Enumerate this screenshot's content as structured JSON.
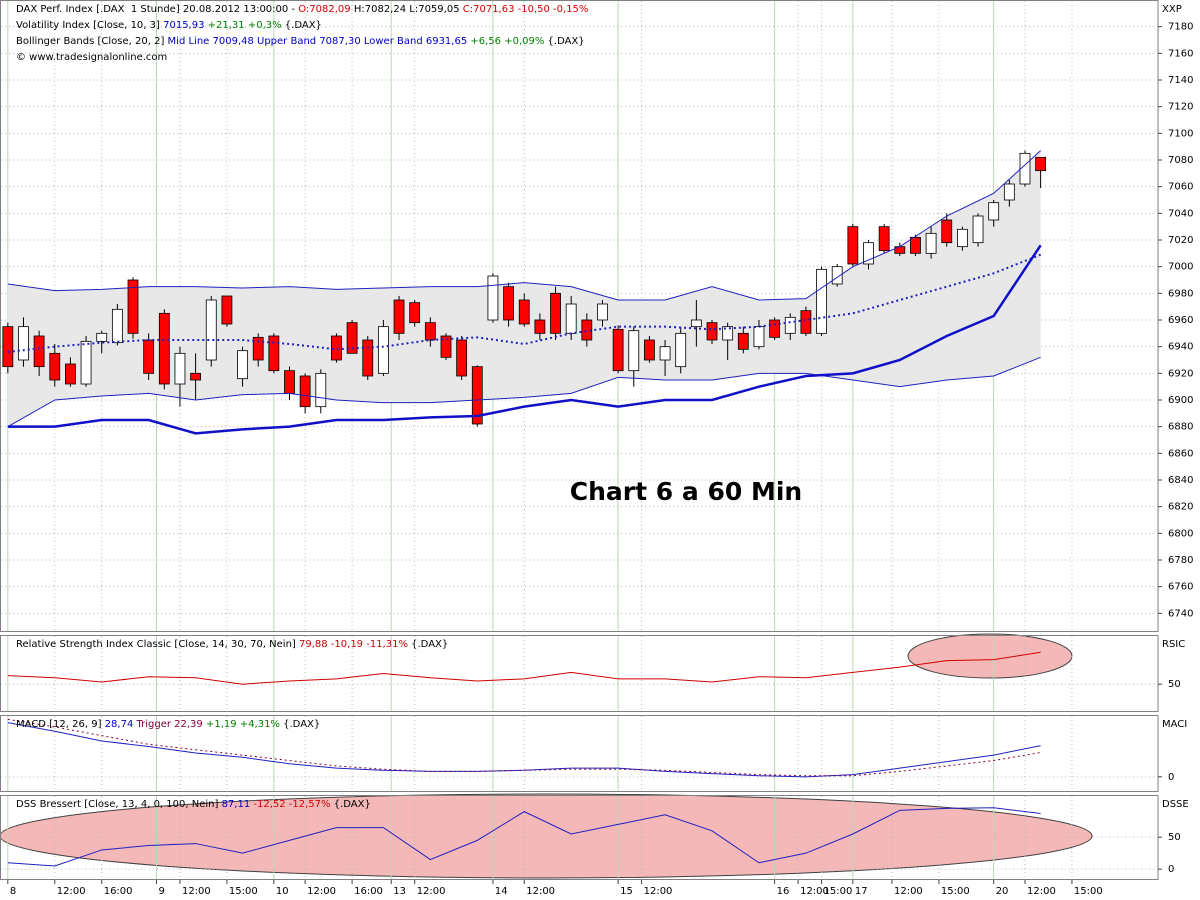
{
  "chart_data": [
    {
      "type": "candlestick",
      "header_lines": [
        [
          {
            "text": "DAX Perf. Index [.DAX  1 Stunde] 20.08.2012 13:00:00 - ",
            "color": "#000000"
          },
          {
            "text": "O:7082,09 ",
            "color": "#d00000"
          },
          {
            "text": "H:7082,24 L:7059,05 ",
            "color": "#000000"
          },
          {
            "text": "C:7071,63 -10,50 -0,15%",
            "color": "#d00000"
          }
        ],
        [
          {
            "text": "Volatility Index [Close, 10, 3] ",
            "color": "#000000"
          },
          {
            "text": "7015,93 ",
            "color": "#0000c0"
          },
          {
            "text": "+21,31 +0,3% ",
            "color": "#008000"
          },
          {
            "text": "{.DAX}",
            "color": "#000000"
          }
        ],
        [
          {
            "text": "Bollinger Bands [Close, 20, 2] ",
            "color": "#000000"
          },
          {
            "text": "Mid Line 7009,48 Upper Band 7087,30 Lower Band 6931,65 ",
            "color": "#0000c0"
          },
          {
            "text": "+6,56 +0,09% ",
            "color": "#008000"
          },
          {
            "text": "{.DAX}",
            "color": "#000000"
          }
        ],
        [
          {
            "text": "© www.tradesignalonline.com",
            "color": "#000000"
          }
        ]
      ],
      "axis_label": "XXP",
      "annotation": "Chart 6 a 60 Min",
      "ylim": [
        6726,
        7200
      ],
      "yticks": [
        6740,
        6760,
        6780,
        6800,
        6820,
        6840,
        6860,
        6880,
        6900,
        6920,
        6940,
        6960,
        6980,
        7000,
        7020,
        7040,
        7060,
        7080,
        7100,
        7120,
        7140,
        7160,
        7180
      ],
      "grid": true,
      "up_color": "#ffffff",
      "down_color": "#ff0000",
      "open": [
        6955,
        6930,
        6948,
        6935,
        6927,
        6912,
        6944,
        6943,
        6990,
        6945,
        6965,
        6912,
        6920,
        6930,
        6978,
        6916,
        6947,
        6948,
        6922,
        6918,
        6895,
        6948,
        6958,
        6945,
        6920,
        6975,
        6973,
        6958,
        6948,
        6945,
        6925,
        6960,
        6985,
        6975,
        6960,
        6980,
        6950,
        6960,
        6960,
        6953,
        6922,
        6945,
        6930,
        6925,
        6955,
        6958,
        6945,
        6950,
        6940,
        6960,
        6950,
        6967,
        6950,
        6987,
        7030,
        7002,
        7030,
        7015,
        7022,
        7010,
        7035,
        7015,
        7018,
        7035,
        7050,
        7062,
        7082
      ],
      "high": [
        6958,
        6962,
        6952,
        6942,
        6932,
        6948,
        6952,
        6972,
        6992,
        6950,
        6968,
        6940,
        6935,
        6978,
        6978,
        6940,
        6950,
        6950,
        6925,
        6920,
        6923,
        6950,
        6960,
        6948,
        6960,
        6978,
        6975,
        6962,
        6950,
        6948,
        6926,
        6995,
        6988,
        6980,
        6965,
        6985,
        6978,
        6965,
        6975,
        6956,
        6955,
        6948,
        6945,
        6955,
        6975,
        6960,
        6958,
        6955,
        6960,
        6962,
        6965,
        6970,
        7000,
        7002,
        7032,
        7020,
        7032,
        7018,
        7024,
        7030,
        7040,
        7030,
        7040,
        7050,
        7065,
        7087,
        7082
      ],
      "low": [
        6920,
        6925,
        6918,
        6910,
        6910,
        6910,
        6935,
        6941,
        6946,
        6915,
        6908,
        6895,
        6900,
        6925,
        6955,
        6910,
        6925,
        6920,
        6900,
        6890,
        6890,
        6928,
        6935,
        6915,
        6918,
        6945,
        6955,
        6940,
        6930,
        6915,
        6880,
        6958,
        6955,
        6955,
        6945,
        6945,
        6945,
        6940,
        6955,
        6920,
        6910,
        6928,
        6918,
        6920,
        6940,
        6942,
        6930,
        6935,
        6938,
        6945,
        6945,
        6948,
        6948,
        6985,
        7000,
        6998,
        7010,
        7008,
        7008,
        7006,
        7015,
        7012,
        7015,
        7030,
        7045,
        7060,
        7059
      ],
      "close": [
        6925,
        6955,
        6925,
        6915,
        6912,
        6944,
        6950,
        6968,
        6950,
        6920,
        6912,
        6935,
        6915,
        6975,
        6957,
        6937,
        6930,
        6922,
        6905,
        6895,
        6920,
        6930,
        6935,
        6918,
        6955,
        6950,
        6958,
        6945,
        6932,
        6918,
        6882,
        6993,
        6960,
        6957,
        6950,
        6950,
        6972,
        6945,
        6972,
        6922,
        6952,
        6930,
        6940,
        6950,
        6960,
        6945,
        6955,
        6938,
        6955,
        6947,
        6962,
        6950,
        6998,
        7000,
        7002,
        7018,
        7012,
        7010,
        7010,
        7025,
        7018,
        7028,
        7038,
        7048,
        7062,
        7085,
        7072
      ],
      "band_color": "#e8e8e8",
      "series": [
        {
          "color": "#2020c0",
          "width": 1,
          "dash": false,
          "x": [
            0,
            3,
            6,
            9,
            12,
            15,
            18,
            21,
            24,
            27,
            30,
            33,
            36,
            39,
            42,
            45,
            48,
            51,
            54,
            57,
            60,
            63,
            66
          ],
          "values": [
            6987,
            6982,
            6983,
            6985,
            6985,
            6984,
            6985,
            6983,
            6984,
            6985,
            6985,
            6988,
            6985,
            6975,
            6975,
            6985,
            6975,
            6976,
            7000,
            7015,
            7038,
            7055,
            7087
          ]
        },
        {
          "color": "#2020c0",
          "width": 2,
          "dash": true,
          "x": [
            0,
            3,
            6,
            9,
            12,
            15,
            18,
            21,
            24,
            27,
            30,
            33,
            36,
            39,
            42,
            45,
            48,
            51,
            54,
            57,
            60,
            63,
            66
          ],
          "values": [
            6936,
            6940,
            6943,
            6945,
            6945,
            6945,
            6942,
            6938,
            6940,
            6945,
            6947,
            6942,
            6950,
            6955,
            6955,
            6953,
            6955,
            6960,
            6965,
            6975,
            6985,
            6995,
            7009
          ]
        },
        {
          "color": "#2020c0",
          "width": 1,
          "dash": false,
          "x": [
            0,
            3,
            6,
            9,
            12,
            15,
            18,
            21,
            24,
            27,
            30,
            33,
            36,
            39,
            42,
            45,
            48,
            51,
            54,
            57,
            60,
            63,
            66
          ],
          "values": [
            6880,
            6900,
            6903,
            6905,
            6900,
            6904,
            6905,
            6900,
            6898,
            6898,
            6900,
            6902,
            6905,
            6917,
            6915,
            6915,
            6920,
            6920,
            6915,
            6910,
            6915,
            6918,
            6932
          ]
        },
        {
          "color": "#1010c8",
          "width": 2.5,
          "dash": false,
          "x": [
            0,
            3,
            6,
            9,
            12,
            15,
            18,
            21,
            24,
            27,
            30,
            33,
            36,
            39,
            42,
            45,
            48,
            51,
            54,
            57,
            60,
            63,
            66
          ],
          "values": [
            6880,
            6880,
            6885,
            6885,
            6875,
            6878,
            6880,
            6885,
            6885,
            6887,
            6888,
            6895,
            6900,
            6895,
            6900,
            6900,
            6910,
            6918,
            6920,
            6930,
            6948,
            6963,
            7016
          ]
        }
      ]
    },
    {
      "type": "line",
      "header_lines": [
        [
          {
            "text": "Relative Strength Index Classic [Close, 14, 30, 70, Nein] ",
            "color": "#000000"
          },
          {
            "text": "79,88 -10,19 -11,31% ",
            "color": "#d00000"
          },
          {
            "text": "{.DAX}",
            "color": "#000000"
          }
        ]
      ],
      "axis_label": "RSIC",
      "ylim": [
        24,
        96
      ],
      "yticks": [
        50
      ],
      "series": [
        {
          "color": "#d00000",
          "width": 1,
          "dash": false,
          "x": [
            0,
            3,
            6,
            9,
            12,
            15,
            18,
            21,
            24,
            27,
            30,
            33,
            36,
            39,
            42,
            45,
            48,
            51,
            54,
            57,
            60,
            63,
            66
          ],
          "values": [
            58,
            56,
            52,
            57,
            56,
            50,
            53,
            55,
            60,
            56,
            53,
            55,
            61,
            55,
            55,
            52,
            57,
            56,
            61,
            66,
            72,
            73,
            79.88
          ]
        }
      ]
    },
    {
      "type": "line",
      "header_lines": [
        [
          {
            "text": "MACD [12, 26, 9] ",
            "color": "#000000"
          },
          {
            "text": "28,74 ",
            "color": "#0000c0"
          },
          {
            "text": "Trigger 22,39 ",
            "color": "#800040"
          },
          {
            "text": "+1,19 +4,31% ",
            "color": "#008000"
          },
          {
            "text": "{.DAX}",
            "color": "#000000"
          }
        ]
      ],
      "axis_label": "MACI",
      "ylim": [
        -14,
        57
      ],
      "yticks": [
        0
      ],
      "series": [
        {
          "color": "#2020c0",
          "width": 1,
          "dash": false,
          "x": [
            0,
            3,
            6,
            9,
            12,
            15,
            18,
            21,
            24,
            27,
            30,
            33,
            36,
            39,
            42,
            45,
            48,
            51,
            54,
            57,
            60,
            63,
            66
          ],
          "values": [
            50,
            42,
            33,
            28,
            22,
            18,
            12,
            8,
            6,
            5,
            5,
            6,
            8,
            8,
            5,
            3,
            1,
            0,
            2,
            8,
            14,
            20,
            28.74
          ]
        },
        {
          "color": "#800040",
          "width": 1,
          "dash": true,
          "x": [
            0,
            3,
            6,
            9,
            12,
            15,
            18,
            21,
            24,
            27,
            30,
            33,
            36,
            39,
            42,
            45,
            48,
            51,
            54,
            57,
            60,
            63,
            66
          ],
          "values": [
            53,
            46,
            38,
            30,
            25,
            20,
            15,
            10,
            7,
            5,
            5,
            6,
            7,
            7,
            6,
            4,
            2,
            1,
            1,
            5,
            10,
            15,
            22.39
          ]
        }
      ]
    },
    {
      "type": "line",
      "header_lines": [
        [
          {
            "text": "DSS Bressert [Close, 13, 4, 0, 100, Nein] ",
            "color": "#000000"
          },
          {
            "text": "87,11 ",
            "color": "#0000c0"
          },
          {
            "text": "-12,52 -12,57% ",
            "color": "#d00000"
          },
          {
            "text": "{.DAX}",
            "color": "#000000"
          }
        ]
      ],
      "axis_label": "DSSE",
      "ylim": [
        -17,
        116
      ],
      "yticks": [
        0,
        50
      ],
      "xlim": [
        -0.5,
        73.5
      ],
      "xticks": [
        {
          "value": 0,
          "label": "8"
        },
        {
          "value": 3,
          "label": "12:00"
        },
        {
          "value": 6,
          "label": "16:00"
        },
        {
          "value": 9.5,
          "label": "9"
        },
        {
          "value": 11,
          "label": "12:00"
        },
        {
          "value": 14,
          "label": "15:00"
        },
        {
          "value": 17,
          "label": "10"
        },
        {
          "value": 19,
          "label": "12:00"
        },
        {
          "value": 22,
          "label": "16:00"
        },
        {
          "value": 24.5,
          "label": "13"
        },
        {
          "value": 26,
          "label": "12:00"
        },
        {
          "value": 31,
          "label": "14"
        },
        {
          "value": 33,
          "label": "12:00"
        },
        {
          "value": 39,
          "label": "15"
        },
        {
          "value": 40.5,
          "label": "12:00"
        },
        {
          "value": 49,
          "label": "16"
        },
        {
          "value": 50.5,
          "label": "12:00"
        },
        {
          "value": 52,
          "label": "15:00"
        },
        {
          "value": 54,
          "label": "17"
        },
        {
          "value": 56.5,
          "label": "12:00"
        },
        {
          "value": 59.5,
          "label": "15:00"
        },
        {
          "value": 63,
          "label": "20"
        },
        {
          "value": 65,
          "label": "12:00"
        },
        {
          "value": 68,
          "label": "15:00"
        }
      ],
      "series": [
        {
          "color": "#2020c0",
          "width": 1,
          "dash": false,
          "x": [
            0,
            3,
            6,
            9,
            12,
            15,
            18,
            21,
            24,
            27,
            30,
            33,
            36,
            39,
            42,
            45,
            48,
            51,
            54,
            57,
            60,
            63,
            66
          ],
          "values": [
            10,
            5,
            30,
            37,
            40,
            25,
            45,
            65,
            65,
            15,
            45,
            90,
            55,
            70,
            85,
            60,
            10,
            25,
            55,
            92,
            95,
            96,
            87.11
          ]
        }
      ]
    }
  ]
}
